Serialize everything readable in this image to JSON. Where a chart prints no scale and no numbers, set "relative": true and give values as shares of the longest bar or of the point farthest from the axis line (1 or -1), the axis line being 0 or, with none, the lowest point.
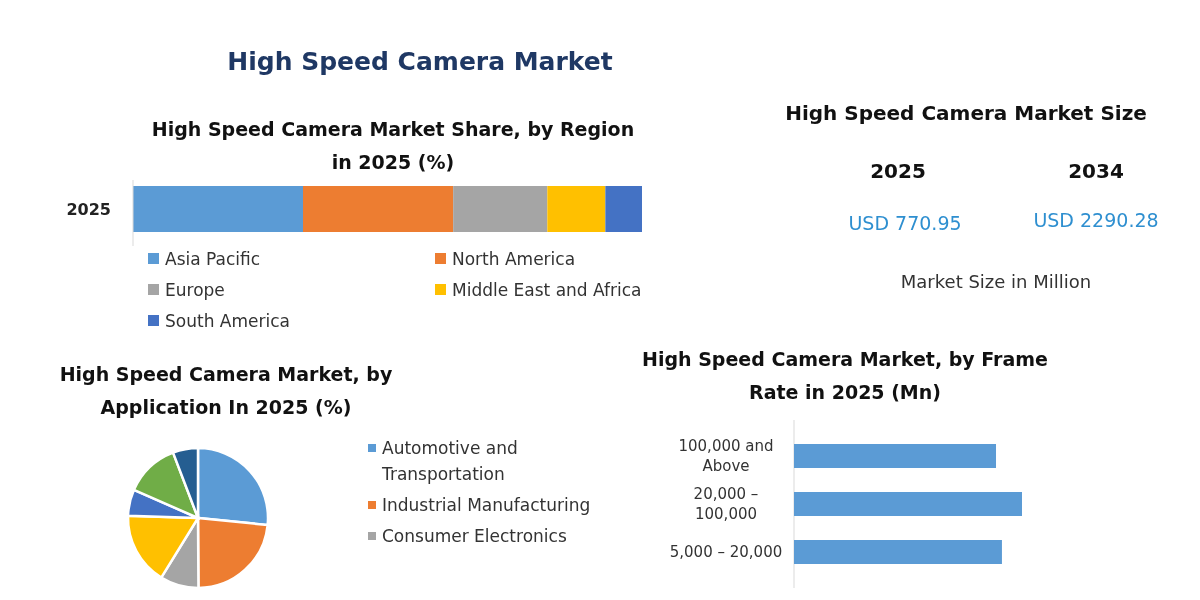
{
  "chart_data": [
    {
      "type": "other",
      "title": "High Speed Camera Market"
    },
    {
      "type": "bar",
      "title": "High Speed Camera Market Share, by Region in 2025 (%)",
      "orientation": "horizontal",
      "stacked": true,
      "relative": true,
      "legend": "bottom",
      "categories": [
        "2025"
      ],
      "series": [
        {
          "name": "Asia Pacific",
          "color": "#5b9bd5",
          "values": [
            0.334
          ]
        },
        {
          "name": "North America",
          "color": "#ed7d31",
          "values": [
            0.295
          ]
        },
        {
          "name": "Europe",
          "color": "#a5a5a5",
          "values": [
            0.185
          ]
        },
        {
          "name": "Middle East and Africa",
          "color": "#ffc000",
          "values": [
            0.114
          ]
        },
        {
          "name": "South America",
          "color": "#4472c4",
          "values": [
            0.072
          ]
        }
      ]
    },
    {
      "type": "other",
      "title": "High Speed Camera Market Size",
      "annotations": [
        "2025",
        "2034",
        "USD 770.95",
        "USD 2290.28",
        "Market Size in Million"
      ]
    },
    {
      "type": "pie",
      "title": "High Speed Camera Market, by Application In 2025 (%)",
      "legend": "right",
      "categories": [
        "Automotive and Transportation",
        "Industrial Manufacturing",
        "Consumer Electronics",
        null,
        null,
        null,
        null
      ],
      "values": [
        26.6,
        23.3,
        8.9,
        16.7,
        6.1,
        12.6,
        5.8
      ],
      "colors": [
        "#5b9bd5",
        "#ed7d31",
        "#a5a5a5",
        "#ffc000",
        "#4472c4",
        "#70ad47",
        "#255e91"
      ]
    },
    {
      "type": "bar",
      "title": "High Speed Camera Market, by Frame Rate in 2025 (Mn)",
      "orientation": "horizontal",
      "relative": true,
      "categories": [
        "100,000 and Above",
        "20,000 – 100,000",
        "5,000 – 20,000"
      ],
      "values": [
        0.886,
        1,
        0.912
      ],
      "color": "#5b9bd5"
    }
  ]
}
